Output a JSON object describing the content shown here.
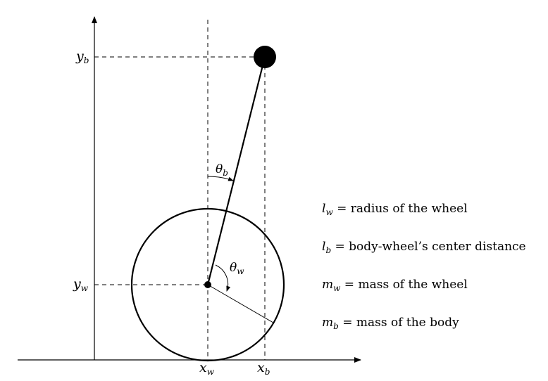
{
  "axes": {
    "yb": {
      "main": "y",
      "sub": "b"
    },
    "yw": {
      "main": "y",
      "sub": "w"
    },
    "xw": {
      "main": "x",
      "sub": "w"
    },
    "xb": {
      "main": "x",
      "sub": "b"
    }
  },
  "angles": {
    "theta_b": {
      "main": "θ",
      "sub": "b"
    },
    "theta_w": {
      "main": "θ",
      "sub": "w"
    }
  },
  "legend": [
    {
      "sym": "l",
      "sub": "w",
      "text": " = radius of the wheel"
    },
    {
      "sym": "l",
      "sub": "b",
      "text": " = body-wheel’s center distance"
    },
    {
      "sym": "m",
      "sub": "w",
      "text": " = mass of the wheel"
    },
    {
      "sym": "m",
      "sub": "b",
      "text": " = mass of the body"
    }
  ]
}
